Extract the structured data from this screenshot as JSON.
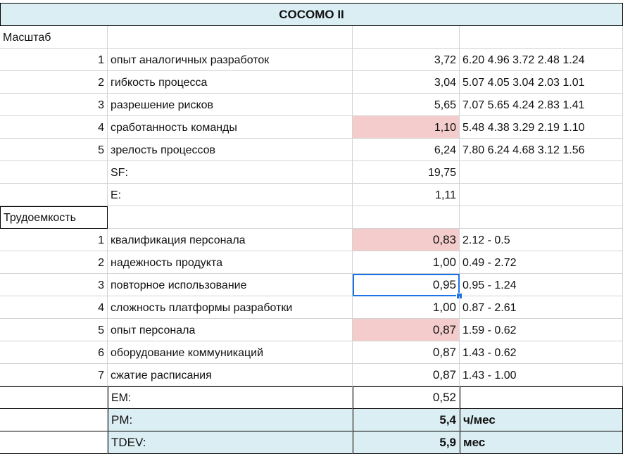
{
  "title": "COCOMO II",
  "scale_section": {
    "label": "Масштаб",
    "rows": [
      {
        "n": "1",
        "name": "опыт аналогичных разработок",
        "value": "3,72",
        "range": "6.20  4.96  3.72  2.48  1.24"
      },
      {
        "n": "2",
        "name": "гибкость процесса",
        "value": "3,04",
        "range": "5.07  4.05  3.04  2.03  1.01"
      },
      {
        "n": "3",
        "name": "разрешение рисков",
        "value": "5,65",
        "range": "7.07  5.65  4.24  2.83  1.41"
      },
      {
        "n": "4",
        "name": "сработанность команды",
        "value": "1,10",
        "range": "5.48  4.38  3.29  2.19  1.10"
      },
      {
        "n": "5",
        "name": "зрелость процессов",
        "value": "6,24",
        "range": "7.80  6.24  4.68  3.12  1.56"
      }
    ],
    "sf_label": "SF:",
    "sf_value": "19,75",
    "e_label": "E:",
    "e_value": "1,11"
  },
  "effort_section": {
    "label": "Трудоемкость",
    "rows": [
      {
        "n": "1",
        "name": "квалификация персонала",
        "value": "0,83",
        "range": "2.12 - 0.5"
      },
      {
        "n": "2",
        "name": "надежность продукта",
        "value": "1,00",
        "range": "0.49 - 2.72"
      },
      {
        "n": "3",
        "name": "повторное использование",
        "value": "0,95",
        "range": "0.95 - 1.24"
      },
      {
        "n": "4",
        "name": "сложность платформы разработки",
        "value": "1,00",
        "range": "0.87 - 2.61"
      },
      {
        "n": "5",
        "name": "опыт персонала",
        "value": "0,87",
        "range": "1.59 - 0.62"
      },
      {
        "n": "6",
        "name": "оборудование коммуникаций",
        "value": "0,87",
        "range": "1.43 - 0.62"
      },
      {
        "n": "7",
        "name": "сжатие расписания",
        "value": "0,87",
        "range": "1.43 - 1.00"
      }
    ]
  },
  "summary": {
    "em_label": "EM:",
    "em_value": "0,52",
    "pm_label": "PM:",
    "pm_value": "5,4",
    "pm_unit": "ч/мес",
    "tdev_label": "TDEV:",
    "tdev_value": "5,9",
    "tdev_unit": "мес"
  },
  "colors": {
    "highlight_pink": "#f4cccc",
    "summary_blue": "#dbeef4",
    "selection_blue": "#1a73e8",
    "gridline": "#d4d4d4"
  }
}
